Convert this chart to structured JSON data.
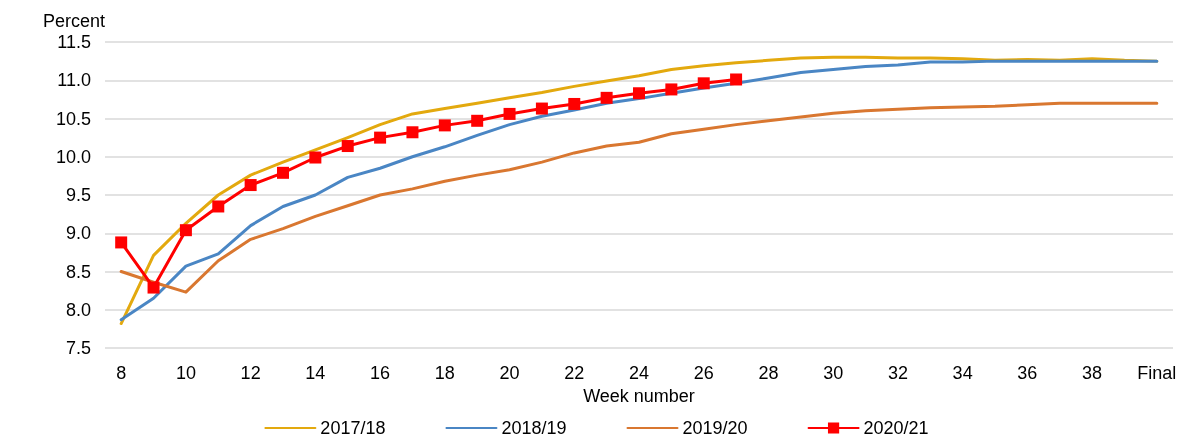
{
  "chart_data": {
    "type": "line",
    "ylabel": "Percent",
    "xlabel": "Week number",
    "categories": [
      "8",
      null,
      "10",
      null,
      "12",
      null,
      "14",
      null,
      "16",
      null,
      "18",
      null,
      "20",
      null,
      "22",
      null,
      "24",
      null,
      "26",
      null,
      "28",
      null,
      "30",
      null,
      "32",
      null,
      "34",
      null,
      "36",
      null,
      "38",
      null,
      "Final"
    ],
    "series": [
      {
        "name": "2017/18",
        "color": "#e3a90e",
        "marker": "none",
        "values": [
          7.82,
          8.71,
          9.13,
          9.5,
          9.76,
          9.93,
          10.09,
          10.25,
          10.42,
          10.56,
          10.63,
          10.7,
          10.77,
          10.84,
          10.92,
          10.99,
          11.06,
          11.14,
          11.19,
          11.23,
          11.26,
          11.29,
          11.3,
          11.3,
          11.29,
          11.29,
          11.28,
          11.26,
          11.27,
          11.26,
          11.28,
          11.26,
          11.25
        ]
      },
      {
        "name": "2018/19",
        "color": "#4a86c4",
        "marker": "none",
        "values": [
          7.87,
          8.15,
          8.57,
          8.73,
          9.1,
          9.35,
          9.5,
          9.73,
          9.85,
          10.0,
          10.13,
          10.28,
          10.42,
          10.53,
          10.61,
          10.7,
          10.76,
          10.83,
          10.9,
          10.96,
          11.03,
          11.1,
          11.14,
          11.18,
          11.2,
          11.24,
          11.24,
          11.25,
          11.25,
          11.25,
          11.25,
          11.25,
          11.25
        ]
      },
      {
        "name": "2019/20",
        "color": "#d97730",
        "marker": "none",
        "values": [
          8.5,
          8.36,
          8.23,
          8.64,
          8.92,
          9.06,
          9.22,
          9.36,
          9.5,
          9.58,
          9.68,
          9.76,
          9.83,
          9.93,
          10.05,
          10.14,
          10.19,
          10.3,
          10.36,
          10.42,
          10.47,
          10.52,
          10.57,
          10.6,
          10.62,
          10.64,
          10.65,
          10.66,
          10.68,
          10.7,
          10.7,
          10.7,
          10.7
        ]
      },
      {
        "name": "2020/21",
        "color": "#ff0000",
        "marker": "square",
        "values": [
          8.88,
          8.29,
          9.04,
          9.35,
          9.63,
          9.79,
          9.99,
          10.14,
          10.25,
          10.32,
          10.41,
          10.47,
          10.56,
          10.63,
          10.69,
          10.77,
          10.83,
          10.88,
          10.96,
          11.01,
          null,
          null,
          null,
          null,
          null,
          null,
          null,
          null,
          null,
          null,
          null,
          null,
          null
        ]
      }
    ],
    "ylim": [
      7.5,
      11.5
    ],
    "yticks": [
      7.5,
      {
        "value": 8,
        "label": "8.0"
      },
      8.5,
      {
        "value": 9,
        "label": "9.0"
      },
      9.5,
      {
        "value": 10,
        "label": "10.0"
      },
      10.5,
      {
        "value": 11,
        "label": "11.0"
      },
      11.5
    ],
    "grid": "y",
    "legend": "bottom",
    "line_style": "solid"
  }
}
